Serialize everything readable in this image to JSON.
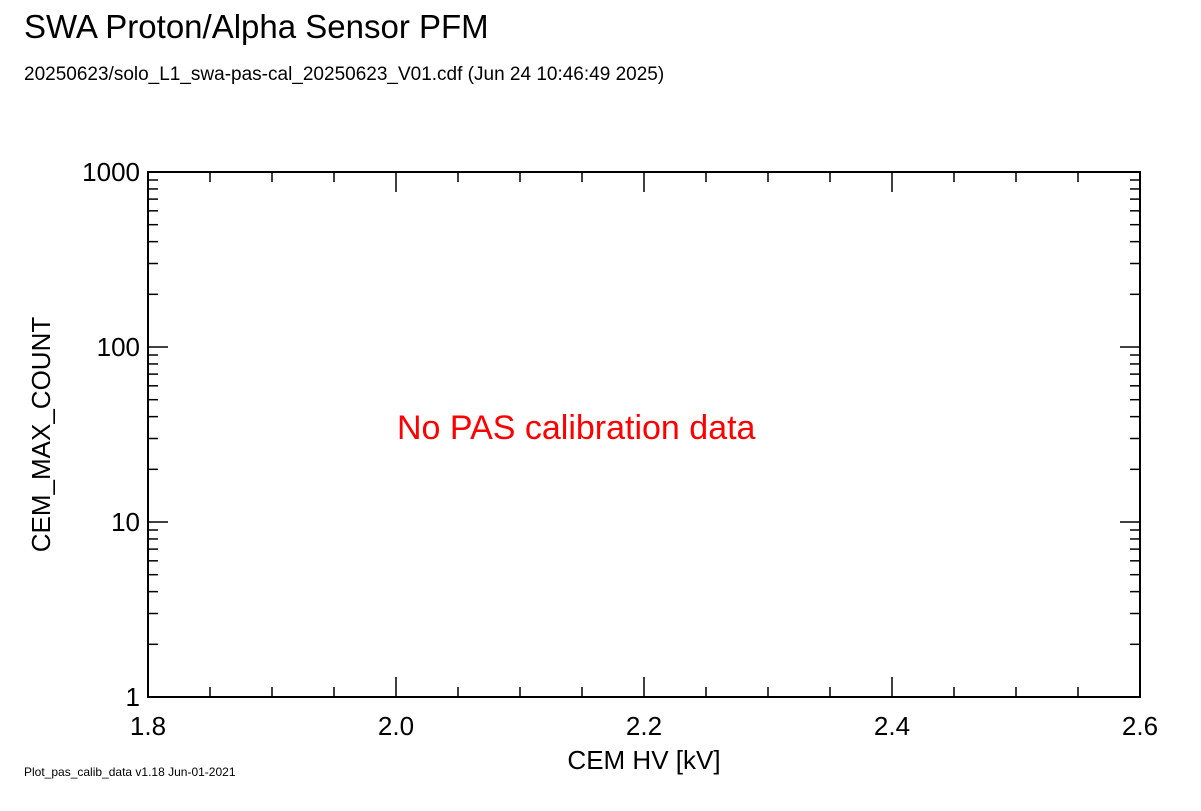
{
  "header": {
    "title": "SWA Proton/Alpha Sensor PFM",
    "subtitle": "20250623/solo_L1_swa-pas-cal_20250623_V01.cdf  (Jun 24 10:46:49 2025)"
  },
  "footer": {
    "version": "Plot_pas_calib_data v1.18 Jun-01-2021"
  },
  "chart_data": {
    "type": "scatter",
    "title": "SWA Proton/Alpha Sensor PFM",
    "subtitle": "20250623/solo_L1_swa-pas-cal_20250623_V01.cdf  (Jun 24 10:46:49 2025)",
    "xlabel": "CEM HV [kV]",
    "ylabel": "CEM_MAX_COUNT",
    "xlim": [
      1.8,
      2.6
    ],
    "ylim": [
      1,
      1000
    ],
    "yscale": "log",
    "x_ticks": [
      1.8,
      2.0,
      2.2,
      2.4,
      2.6
    ],
    "x_tick_labels": [
      "1.8",
      "2.0",
      "2.2",
      "2.4",
      "2.6"
    ],
    "y_ticks": [
      1,
      10,
      100,
      1000
    ],
    "y_tick_labels": [
      "1",
      "10",
      "100",
      "1000"
    ],
    "grid": false,
    "series": [],
    "annotation": {
      "text": "No PAS calibration data",
      "color": "#ff0000",
      "x": 2.16,
      "y": 35
    }
  }
}
